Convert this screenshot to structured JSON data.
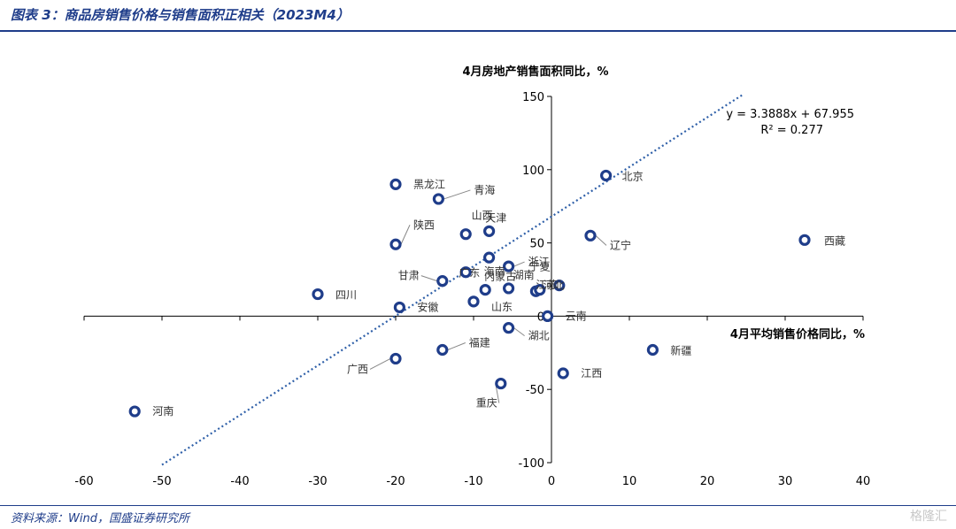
{
  "header": {
    "title": "图表 3：商品房销售价格与销售面积正相关（2023M4）"
  },
  "footer": {
    "source": "资料来源：Wind，国盛证券研究所",
    "watermark": "格隆汇"
  },
  "chart_data": {
    "type": "scatter",
    "xlabel": "4月平均销售价格同比，%",
    "ylabel": "4月房地产销售面积同比，%",
    "xlim": [
      -60,
      40
    ],
    "ylim": [
      -100,
      150
    ],
    "x_ticks": [
      -60,
      -50,
      -40,
      -30,
      -20,
      -10,
      0,
      10,
      20,
      30,
      40
    ],
    "x_tick_labels": [
      "-60",
      "-50",
      "-40",
      "-30",
      "-20",
      "-10",
      "0",
      "10",
      "20",
      "30",
      "40"
    ],
    "y_ticks": [
      -100,
      -50,
      0,
      50,
      100,
      150
    ],
    "y_tick_labels": [
      "-100",
      "-50",
      "0",
      "50",
      "100",
      "150"
    ],
    "trendline": {
      "slope": 3.3888,
      "intercept": 67.955,
      "x_range": [
        -50,
        24.5
      ],
      "equation": "y = 3.3888x + 67.955",
      "r2_label": "R² = 0.277"
    },
    "colors": {
      "marker": "#1f3d8a",
      "trendline": "#2e5fa8",
      "axis": "#000000"
    },
    "points": [
      {
        "name": "北京",
        "x": 7,
        "y": 96
      },
      {
        "name": "黑龙江",
        "x": -20,
        "y": 90
      },
      {
        "name": "青海",
        "x": -14.5,
        "y": 80
      },
      {
        "name": "山西",
        "x": -8,
        "y": 58
      },
      {
        "name": "天津",
        "x": -11,
        "y": 56
      },
      {
        "name": "海南",
        "x": -8,
        "y": 40
      },
      {
        "name": "陕西",
        "x": -20,
        "y": 49
      },
      {
        "name": "辽宁",
        "x": 5,
        "y": 55
      },
      {
        "name": "西藏",
        "x": 32.5,
        "y": 52
      },
      {
        "name": "浙江",
        "x": -5.5,
        "y": 34
      },
      {
        "name": "甘肃",
        "x": -14,
        "y": 24
      },
      {
        "name": "广东",
        "x": -11,
        "y": 30
      },
      {
        "name": "内蒙古",
        "x": -8.5,
        "y": 18
      },
      {
        "name": "湖南",
        "x": -5.5,
        "y": 19
      },
      {
        "name": "宁夏",
        "x": 1,
        "y": 21
      },
      {
        "name": "江苏",
        "x": -2,
        "y": 17
      },
      {
        "name": "河北",
        "x": -1.5,
        "y": 18
      },
      {
        "name": "山东",
        "x": -10,
        "y": 10
      },
      {
        "name": "四川",
        "x": -30,
        "y": 15
      },
      {
        "name": "安徽",
        "x": -19.5,
        "y": 6
      },
      {
        "name": "云南",
        "x": -0.5,
        "y": 0
      },
      {
        "name": "湖北",
        "x": -5.5,
        "y": -8
      },
      {
        "name": "福建",
        "x": -14,
        "y": -23
      },
      {
        "name": "新疆",
        "x": 13,
        "y": -23
      },
      {
        "name": "广西",
        "x": -20,
        "y": -29
      },
      {
        "name": "江西",
        "x": 1.5,
        "y": -39
      },
      {
        "name": "重庆",
        "x": -6.5,
        "y": -46
      },
      {
        "name": "河南",
        "x": -53.5,
        "y": -65
      }
    ]
  }
}
